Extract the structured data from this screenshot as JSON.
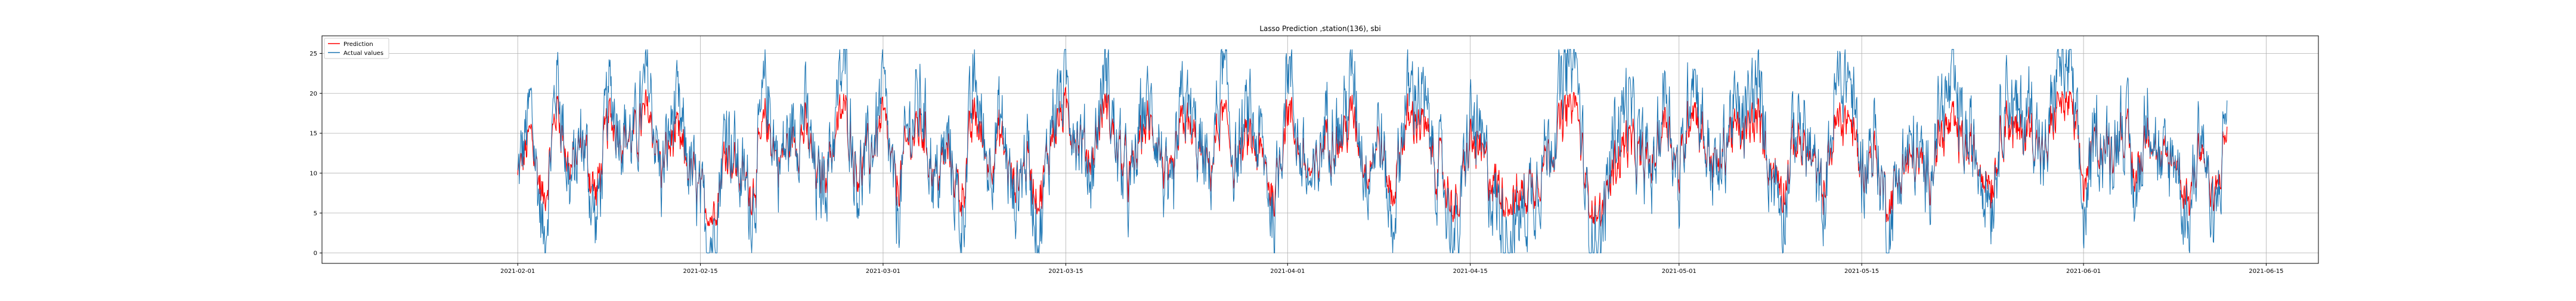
{
  "chart_data": {
    "type": "line",
    "title": "Lasso Prediction ,station(136), sbi",
    "xlabel": "",
    "ylabel": "",
    "xlim": [
      "2021-01-17",
      "2021-06-19"
    ],
    "ylim": [
      -1.3,
      27.2
    ],
    "grid": true,
    "legend": "top-left",
    "x_ticks": [
      "2021-02-01",
      "2021-02-15",
      "2021-03-01",
      "2021-03-15",
      "2021-04-01",
      "2021-04-15",
      "2021-05-01",
      "2021-05-15",
      "2021-06-01",
      "2021-06-15"
    ],
    "y_ticks": [
      0,
      5,
      10,
      15,
      20,
      25
    ],
    "x_start": "2021-02-01",
    "x_end": "2021-06-12",
    "series": [
      {
        "name": "Prediction",
        "color": "#ff0000",
        "x": [
          "2021-02-01",
          "2021-02-04",
          "2021-02-07",
          "2021-02-10",
          "2021-02-13",
          "2021-02-16",
          "2021-02-19",
          "2021-02-22",
          "2021-02-25",
          "2021-02-28",
          "2021-03-03",
          "2021-03-06",
          "2021-03-09",
          "2021-03-12",
          "2021-03-15",
          "2021-03-18",
          "2021-03-21",
          "2021-03-24",
          "2021-03-27",
          "2021-03-30",
          "2021-04-02",
          "2021-04-05",
          "2021-04-08",
          "2021-04-11",
          "2021-04-14",
          "2021-04-17",
          "2021-04-20",
          "2021-04-23",
          "2021-04-26",
          "2021-04-29",
          "2021-05-02",
          "2021-05-05",
          "2021-05-08",
          "2021-05-11",
          "2021-05-14",
          "2021-05-17",
          "2021-05-20",
          "2021-05-23",
          "2021-05-26",
          "2021-05-29",
          "2021-06-01",
          "2021-06-04",
          "2021-06-07",
          "2021-06-10",
          "2021-06-12"
        ],
        "values": [
          9.5,
          13.5,
          12.0,
          14.5,
          11.0,
          8.0,
          10.5,
          12.5,
          11.5,
          13.0,
          12.0,
          11.0,
          12.5,
          10.5,
          14.0,
          13.5,
          12.5,
          13.0,
          11.0,
          10.0,
          11.5,
          12.0,
          11.5,
          12.5,
          9.5,
          11.5,
          10.0,
          12.5,
          6.0,
          12.5,
          13.0,
          12.5,
          11.5,
          11.0,
          10.5,
          9.5,
          10.0,
          11.0,
          12.0,
          12.5,
          14.0,
          13.5,
          12.0,
          10.5,
          11.0
        ]
      },
      {
        "name": "Actual values",
        "color": "#1f77b4",
        "x": [
          "2021-02-01",
          "2021-02-02",
          "2021-02-03",
          "2021-02-04",
          "2021-02-05",
          "2021-02-06",
          "2021-02-07",
          "2021-02-08",
          "2021-02-09",
          "2021-02-10",
          "2021-02-11",
          "2021-02-12",
          "2021-02-13",
          "2021-02-14",
          "2021-02-15",
          "2021-02-16",
          "2021-02-17",
          "2021-02-18",
          "2021-02-19",
          "2021-02-20",
          "2021-02-21",
          "2021-02-22",
          "2021-02-23",
          "2021-02-24",
          "2021-02-25",
          "2021-02-26",
          "2021-02-27",
          "2021-02-28",
          "2021-03-01",
          "2021-03-02",
          "2021-03-03",
          "2021-03-04",
          "2021-03-05",
          "2021-03-06",
          "2021-03-07",
          "2021-03-08",
          "2021-03-09",
          "2021-03-10",
          "2021-03-11",
          "2021-03-12",
          "2021-03-13",
          "2021-03-14",
          "2021-03-15",
          "2021-03-16",
          "2021-03-17",
          "2021-03-18",
          "2021-03-19",
          "2021-03-20",
          "2021-03-21",
          "2021-03-22",
          "2021-03-23",
          "2021-03-24",
          "2021-03-25",
          "2021-03-26",
          "2021-03-27",
          "2021-03-28",
          "2021-03-29",
          "2021-03-30",
          "2021-03-31",
          "2021-04-01",
          "2021-04-02",
          "2021-04-03",
          "2021-04-04",
          "2021-04-05",
          "2021-04-06",
          "2021-04-07",
          "2021-04-08",
          "2021-04-09",
          "2021-04-10",
          "2021-04-11",
          "2021-04-12",
          "2021-04-13",
          "2021-04-14",
          "2021-04-15",
          "2021-04-16",
          "2021-04-17",
          "2021-04-18",
          "2021-04-19",
          "2021-04-20",
          "2021-04-21",
          "2021-04-22",
          "2021-04-23",
          "2021-04-24",
          "2021-04-25",
          "2021-04-26",
          "2021-04-27",
          "2021-04-28",
          "2021-04-29",
          "2021-04-30",
          "2021-05-01",
          "2021-05-02",
          "2021-05-03",
          "2021-05-04",
          "2021-05-05",
          "2021-05-06",
          "2021-05-07",
          "2021-05-08",
          "2021-05-09",
          "2021-05-10",
          "2021-05-11",
          "2021-05-12",
          "2021-05-13",
          "2021-05-14",
          "2021-05-15",
          "2021-05-16",
          "2021-05-17",
          "2021-05-18",
          "2021-05-19",
          "2021-05-20",
          "2021-05-21",
          "2021-05-22",
          "2021-05-23",
          "2021-05-24",
          "2021-05-25",
          "2021-05-26",
          "2021-05-27",
          "2021-05-28",
          "2021-05-29",
          "2021-05-30",
          "2021-05-31",
          "2021-06-01",
          "2021-06-02",
          "2021-06-03",
          "2021-06-04",
          "2021-06-05",
          "2021-06-06",
          "2021-06-07",
          "2021-06-08",
          "2021-06-09",
          "2021-06-10",
          "2021-06-11",
          "2021-06-12"
        ],
        "values": [
          9,
          18,
          1,
          23,
          8,
          15,
          3,
          20,
          16,
          14,
          22,
          9,
          18,
          12,
          5,
          2,
          17,
          10,
          6,
          21,
          11,
          15,
          18,
          7,
          13,
          24,
          9,
          12,
          20,
          4,
          16,
          19,
          8,
          14,
          3,
          22,
          11,
          17,
          6,
          13,
          2,
          18,
          21,
          15,
          10,
          24,
          12,
          7,
          19,
          16,
          3,
          20,
          14,
          9,
          23,
          11,
          17,
          13,
          4,
          25,
          12,
          7,
          18,
          15,
          22,
          10,
          16,
          3,
          19,
          21,
          14,
          8,
          1,
          17,
          12,
          6,
          2,
          5,
          9,
          14,
          20,
          26,
          4,
          1,
          15,
          19,
          12,
          10,
          22,
          7,
          25,
          14,
          9,
          18,
          16,
          21,
          11,
          6,
          17,
          13,
          5,
          20,
          23,
          10,
          15,
          3,
          11,
          13,
          9,
          18,
          20,
          14,
          12,
          7,
          22,
          16,
          19,
          10,
          24,
          23,
          4,
          15,
          12,
          18,
          6,
          20,
          9,
          13,
          3,
          17,
          1,
          20
        ]
      }
    ]
  }
}
